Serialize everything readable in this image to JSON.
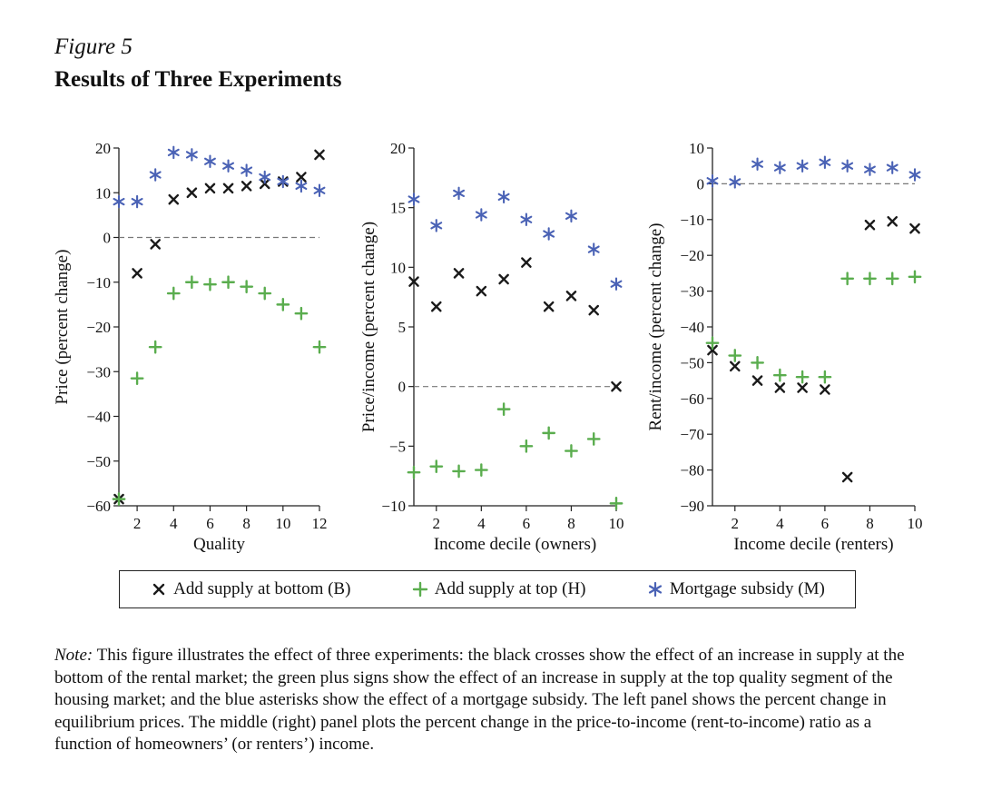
{
  "figure": {
    "label": "Figure 5",
    "title": "Results of Three Experiments"
  },
  "colors": {
    "B": "#1a1a1a",
    "H": "#5aad4e",
    "M": "#4a62b5",
    "zero_line": "#777777"
  },
  "legend": [
    {
      "key": "B",
      "label": "Add supply at bottom (B)",
      "marker": "cross"
    },
    {
      "key": "H",
      "label": "Add supply at top (H)",
      "marker": "plus"
    },
    {
      "key": "M",
      "label": "Mortgage subsidy (M)",
      "marker": "asterisk"
    }
  ],
  "chart_data": [
    {
      "type": "scatter",
      "title": "",
      "xlabel": "Quality",
      "ylabel": "Price (percent change)",
      "xlim": [
        1,
        12
      ],
      "ylim": [
        -60,
        20
      ],
      "xticks": [
        2,
        4,
        6,
        8,
        10,
        12
      ],
      "yticks": [
        -60,
        -50,
        -40,
        -30,
        -20,
        -10,
        0,
        10,
        20
      ],
      "zero_line": true,
      "x": [
        1,
        2,
        3,
        4,
        5,
        6,
        7,
        8,
        9,
        10,
        11,
        12
      ],
      "series": [
        {
          "name": "Add supply at bottom (B)",
          "key": "B",
          "values": [
            -58.5,
            -8,
            -1.5,
            8.5,
            10,
            11,
            11,
            11.5,
            12,
            12.5,
            13.5,
            18.5
          ]
        },
        {
          "name": "Add supply at top (H)",
          "key": "H",
          "values": [
            -58.5,
            -31.5,
            -24.5,
            -12.5,
            -10,
            -10.5,
            -10,
            -11,
            -12.5,
            -15,
            -17,
            -24.5
          ]
        },
        {
          "name": "Mortgage subsidy (M)",
          "key": "M",
          "values": [
            8,
            8,
            14,
            19,
            18.5,
            17,
            16,
            15,
            13.5,
            12.5,
            11.5,
            10.5
          ]
        }
      ]
    },
    {
      "type": "scatter",
      "title": "",
      "xlabel": "Income decile (owners)",
      "ylabel": "Price/income (percent change)",
      "xlim": [
        1,
        10
      ],
      "ylim": [
        -10,
        20
      ],
      "xticks": [
        2,
        4,
        6,
        8,
        10
      ],
      "yticks": [
        -10,
        -5,
        0,
        5,
        10,
        15,
        20
      ],
      "zero_line": true,
      "x": [
        1,
        2,
        3,
        4,
        5,
        6,
        7,
        8,
        9,
        10
      ],
      "series": [
        {
          "name": "Add supply at bottom (B)",
          "key": "B",
          "values": [
            8.8,
            6.7,
            9.5,
            8,
            9,
            10.4,
            6.7,
            7.6,
            6.4,
            0
          ]
        },
        {
          "name": "Add supply at top (H)",
          "key": "H",
          "values": [
            -7.2,
            -6.7,
            -7.1,
            -7,
            -1.9,
            -5,
            -3.9,
            -5.4,
            -4.4,
            -9.8
          ]
        },
        {
          "name": "Mortgage subsidy (M)",
          "key": "M",
          "values": [
            15.7,
            13.5,
            16.2,
            14.4,
            15.9,
            14,
            12.8,
            14.3,
            11.5,
            8.6
          ]
        }
      ]
    },
    {
      "type": "scatter",
      "title": "",
      "xlabel": "Income decile (renters)",
      "ylabel": "Rent/income (percent change)",
      "xlim": [
        1,
        10
      ],
      "ylim": [
        -90,
        10
      ],
      "xticks": [
        2,
        4,
        6,
        8,
        10
      ],
      "yticks": [
        -90,
        -80,
        -70,
        -60,
        -50,
        -40,
        -30,
        -20,
        -10,
        0,
        10
      ],
      "zero_line": true,
      "x": [
        1,
        2,
        3,
        4,
        5,
        6,
        7,
        8,
        9,
        10
      ],
      "series": [
        {
          "name": "Add supply at bottom (B)",
          "key": "B",
          "values": [
            -46.5,
            -51,
            -55,
            -57,
            -57,
            -57.5,
            -82,
            -11.5,
            -10.5,
            -12.5
          ]
        },
        {
          "name": "Add supply at top (H)",
          "key": "H",
          "values": [
            -44.5,
            -48,
            -50,
            -53.5,
            -54,
            -54,
            -26.5,
            -26.5,
            -26.5,
            -26
          ]
        },
        {
          "name": "Mortgage subsidy (M)",
          "key": "M",
          "values": [
            0.8,
            0.5,
            5.5,
            4.5,
            5,
            6,
            5,
            4,
            4.5,
            2.5
          ]
        }
      ]
    }
  ],
  "note": {
    "label": "Note:",
    "text": " This figure illustrates the effect of three experiments: the black crosses show the effect of an increase in supply at the bottom of the rental market; the green plus signs show the effect of an increase in supply at the top quality segment of the housing market; and the blue asterisks show the effect of a mortgage subsidy. The left panel shows the percent change in equilibrium prices. The middle (right) panel plots the percent change in the price-to-income (rent-to-income) ratio as a function of homeowners’ (or renters’) income."
  }
}
